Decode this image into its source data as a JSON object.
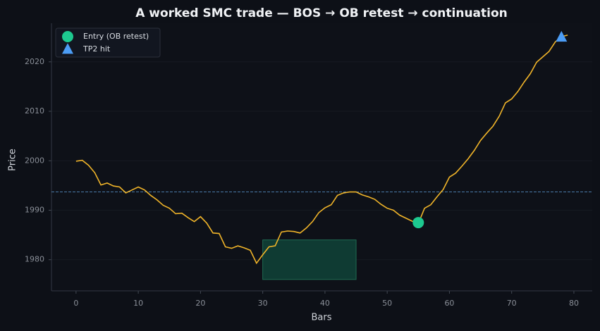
{
  "chart_data": {
    "type": "line",
    "title": "A worked SMC trade — BOS → OB retest → continuation",
    "x_label": "Bars",
    "y_label": "Price",
    "x": [
      0,
      1,
      2,
      3,
      4,
      5,
      6,
      7,
      8,
      9,
      10,
      11,
      12,
      13,
      14,
      15,
      16,
      17,
      18,
      19,
      20,
      21,
      22,
      23,
      24,
      25,
      26,
      27,
      28,
      29,
      30,
      31,
      32,
      33,
      34,
      35,
      36,
      37,
      38,
      39,
      40,
      41,
      42,
      43,
      44,
      45,
      46,
      47,
      48,
      49,
      50,
      51,
      52,
      53,
      54,
      55,
      56,
      57,
      58,
      59,
      60,
      61,
      62,
      63,
      64,
      65,
      66,
      67,
      68,
      69,
      70,
      71,
      72,
      73,
      74,
      75,
      76,
      77,
      78,
      79
    ],
    "values": [
      1999.9,
      2000.1,
      1999.1,
      1997.6,
      1995.1,
      1995.5,
      1994.9,
      1994.7,
      1993.5,
      1994.1,
      1994.7,
      1994.1,
      1993.0,
      1992.1,
      1991.0,
      1990.4,
      1989.3,
      1989.4,
      1988.5,
      1987.7,
      1988.7,
      1987.4,
      1985.4,
      1985.3,
      1982.6,
      1982.3,
      1982.8,
      1982.4,
      1981.9,
      1979.3,
      1981.0,
      1982.6,
      1982.8,
      1985.6,
      1985.8,
      1985.7,
      1985.4,
      1986.4,
      1987.7,
      1989.5,
      1990.5,
      1991.1,
      1993.0,
      1993.5,
      1993.7,
      1993.7,
      1993.1,
      1992.7,
      1992.2,
      1991.2,
      1990.4,
      1990.0,
      1989.0,
      1988.4,
      1987.8,
      1987.3,
      1990.4,
      1991.1,
      1992.7,
      1994.2,
      1996.7,
      1997.5,
      1998.9,
      2000.4,
      2002.1,
      2004.1,
      2005.6,
      2007.0,
      2009.0,
      2011.7,
      2012.5,
      2014.0,
      2015.9,
      2017.6,
      2019.9,
      2021.0,
      2022.1,
      2024.0,
      2025.1,
      2025.4
    ],
    "color": "#f0b429",
    "level": 1993.7,
    "level_color": "#4a7aa8",
    "zone": {
      "x": [
        30,
        45
      ],
      "y": [
        1976,
        1984
      ],
      "color": "#0f3b33",
      "edge": "#1f6b52"
    },
    "markers": [
      {
        "name": "Entry (OB retest)",
        "shape": "circle",
        "color": "#1dc98f",
        "x": 55,
        "y": 1987.5
      },
      {
        "name": "TP2 hit",
        "shape": "triangle",
        "color": "#4c9df5",
        "x": 78,
        "y": 2025.0
      }
    ],
    "xlim": [
      -3.95,
      82.95
    ],
    "ylim": [
      1973.7,
      2027.8
    ],
    "xticks": [
      0,
      10,
      20,
      30,
      40,
      50,
      60,
      70,
      80
    ],
    "yticks": [
      1980,
      1990,
      2000,
      2010,
      2020
    ],
    "grid": true,
    "legend": "upper-left"
  }
}
